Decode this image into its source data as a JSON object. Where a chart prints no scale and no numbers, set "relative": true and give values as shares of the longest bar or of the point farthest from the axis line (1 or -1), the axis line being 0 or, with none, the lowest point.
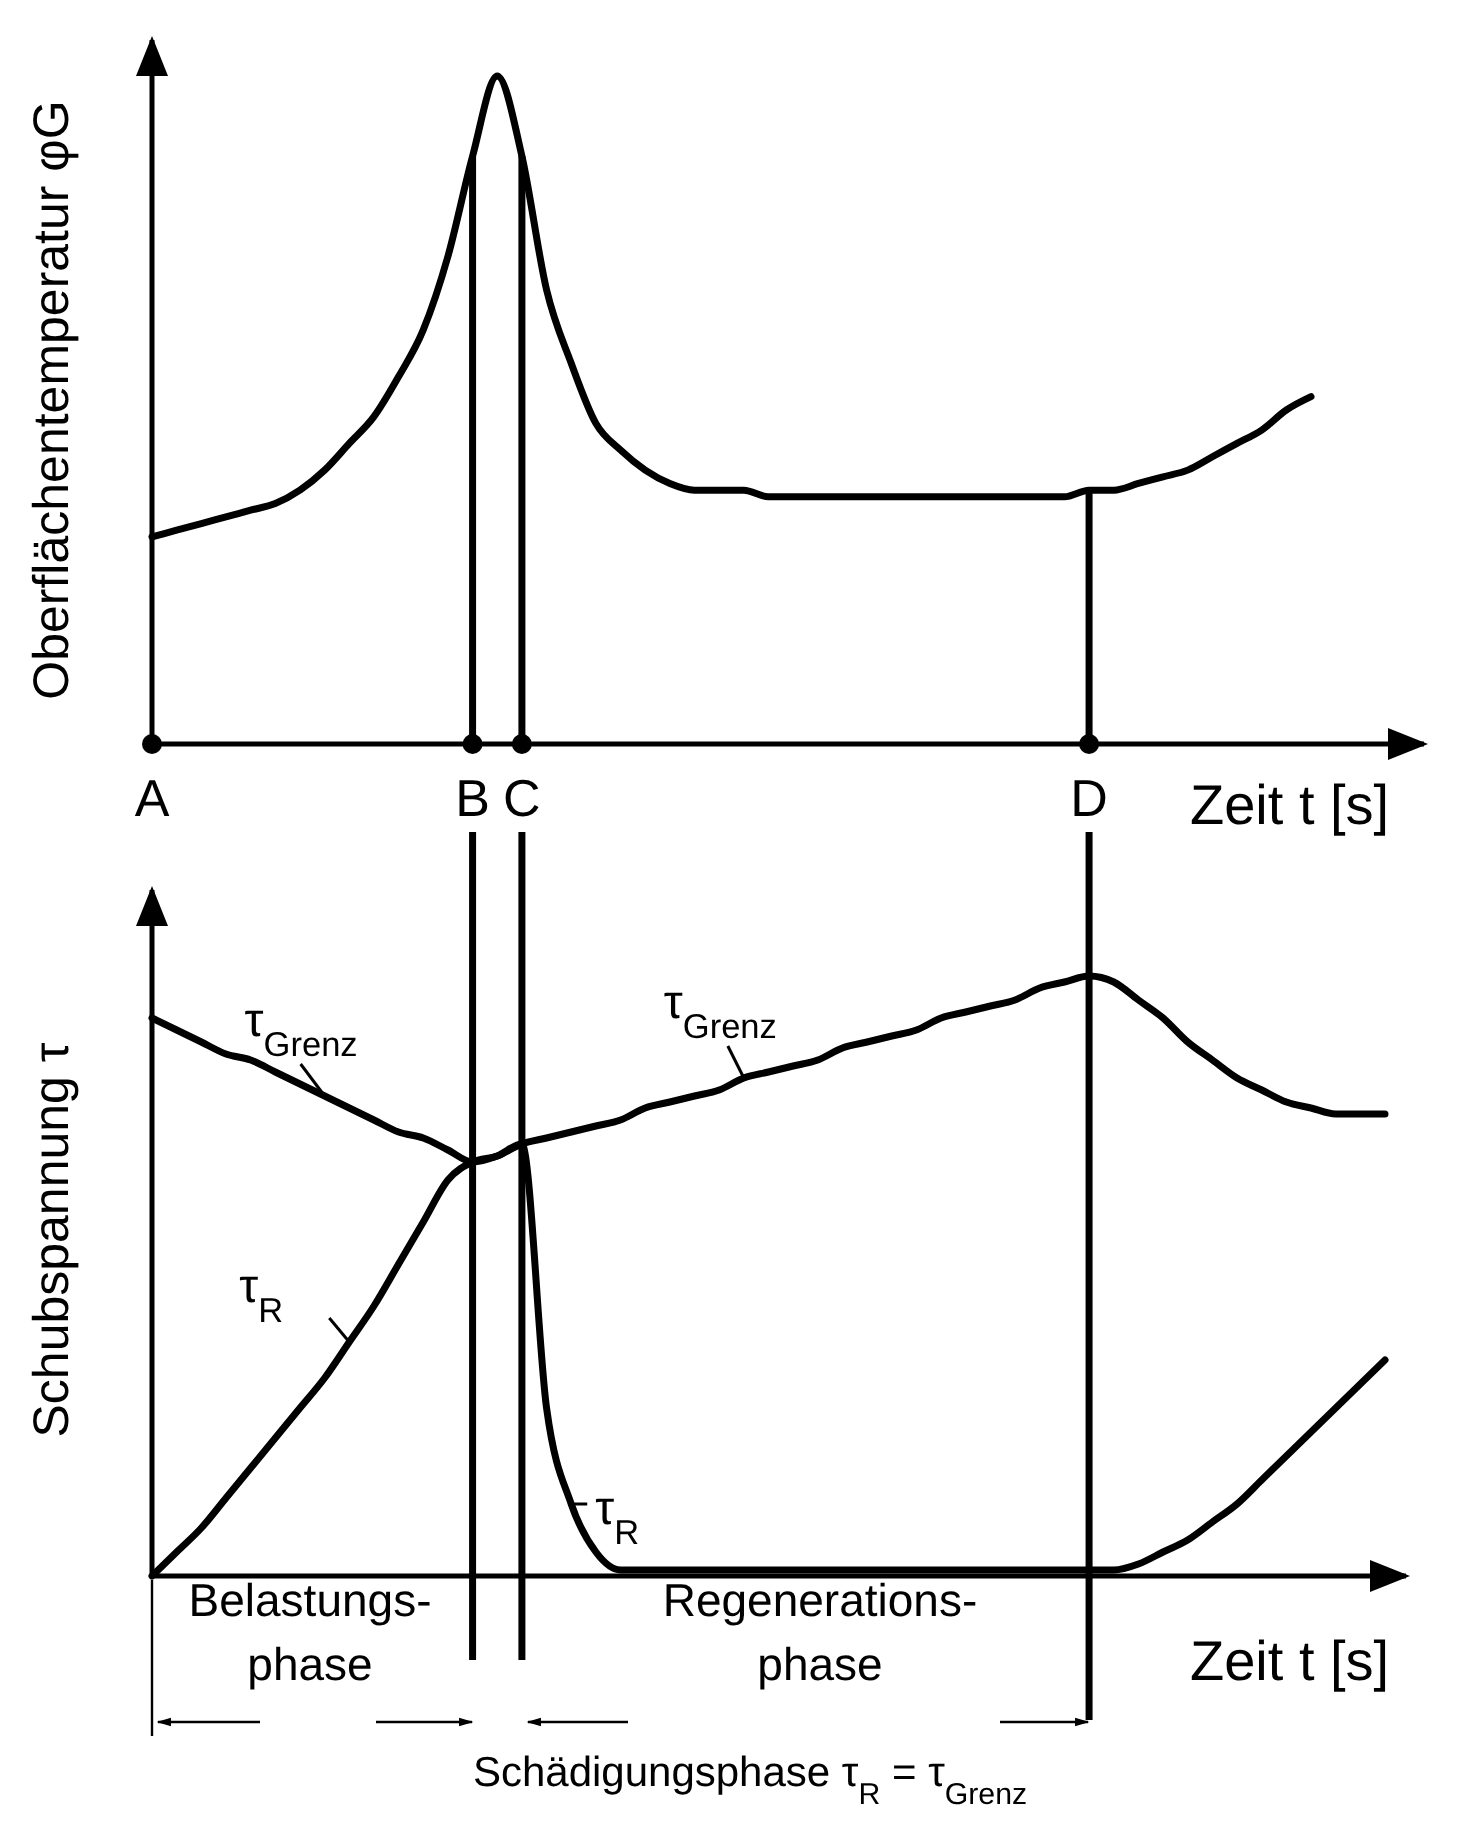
{
  "chart_data": [
    {
      "type": "line",
      "relative": true,
      "xlabel": "Zeit t [s]",
      "ylabel": "Oberflächentemperatur φG",
      "categories": [
        "A",
        null,
        null,
        null,
        null,
        null,
        null,
        null,
        null,
        null,
        null,
        null,
        null,
        "B",
        null,
        "C",
        null,
        null,
        null,
        null,
        null,
        null,
        null,
        null,
        null,
        null,
        null,
        null,
        null,
        null,
        null,
        null,
        null,
        null,
        null,
        null,
        null,
        null,
        "D",
        null,
        null,
        null,
        null,
        null,
        null,
        null,
        null,
        null
      ],
      "series": [
        {
          "color": "#000000",
          "values": [
            0.31,
            0.32,
            0.33,
            0.34,
            0.35,
            0.36,
            0.38,
            0.41,
            0.45,
            0.49,
            0.55,
            0.62,
            0.73,
            0.88,
            1,
            0.88,
            0.68,
            0.57,
            0.48,
            0.44,
            0.41,
            0.39,
            0.38,
            0.38,
            0.38,
            0.37,
            0.37,
            0.37,
            0.37,
            0.37,
            0.37,
            0.37,
            0.37,
            0.37,
            0.37,
            0.37,
            0.37,
            0.37,
            0.38,
            0.38,
            0.39,
            0.4,
            0.41,
            0.43,
            0.45,
            0.47,
            0.5,
            0.52
          ]
        }
      ],
      "ref_lines": [
        {
          "axis": "x",
          "value": "B"
        },
        {
          "axis": "x",
          "value": "C"
        },
        {
          "axis": "x",
          "value": "D"
        }
      ]
    },
    {
      "type": "line",
      "relative": true,
      "xlabel": "Zeit t [s]",
      "ylabel": "Schubspannung τ",
      "categories": [
        null,
        null,
        null,
        null,
        null,
        null,
        null,
        null,
        null,
        null,
        null,
        null,
        null,
        null,
        null,
        null,
        null,
        null,
        null,
        null,
        null,
        null,
        null,
        null,
        null,
        null,
        null,
        null,
        null,
        null,
        null,
        null,
        null,
        null,
        null,
        null,
        null,
        null,
        null,
        null,
        null,
        null,
        null,
        null,
        null,
        null,
        null,
        null,
        null,
        null,
        null
      ],
      "series": [
        {
          "name": "τ$_{Grenz}$",
          "color": "#000000",
          "values": [
            0.93,
            0.91,
            0.89,
            0.87,
            0.86,
            0.84,
            0.82,
            0.8,
            0.78,
            0.76,
            0.74,
            0.73,
            0.71,
            0.69,
            0.7,
            0.72,
            0.73,
            0.74,
            0.75,
            0.76,
            0.78,
            0.79,
            0.8,
            0.81,
            0.83,
            0.84,
            0.85,
            0.86,
            0.88,
            0.89,
            0.9,
            0.91,
            0.93,
            0.94,
            0.95,
            0.96,
            0.98,
            0.99,
            1,
            0.99,
            0.96,
            0.93,
            0.89,
            0.86,
            0.83,
            0.81,
            0.79,
            0.78,
            0.77,
            0.77,
            0.77
          ]
        },
        {
          "name": "τ$_{R}$",
          "color": "#000000",
          "values": [
            0,
            0.04,
            0.08,
            0.13,
            0.18,
            0.23,
            0.28,
            0.33,
            0.39,
            0.45,
            0.52,
            0.59,
            0.66,
            0.69,
            0.7,
            0.72,
            0.28,
            0.12,
            0.04,
            0.01,
            0.01,
            0.01,
            0.01,
            0.01,
            0.01,
            0.01,
            0.01,
            0.01,
            0.01,
            0.01,
            0.01,
            0.01,
            0.01,
            0.01,
            0.01,
            0.01,
            0.01,
            0.01,
            0.01,
            0.01,
            0.02,
            0.04,
            0.06,
            0.09,
            0.12,
            0.16,
            0.2,
            0.24,
            0.28,
            0.32,
            0.36
          ]
        }
      ],
      "annotations": [
        "Belastungs-\nphase",
        "Regenerations-\nphase",
        "Schädigungsphase τ$_{R}$ = τ$_{Grenz}$"
      ]
    }
  ]
}
